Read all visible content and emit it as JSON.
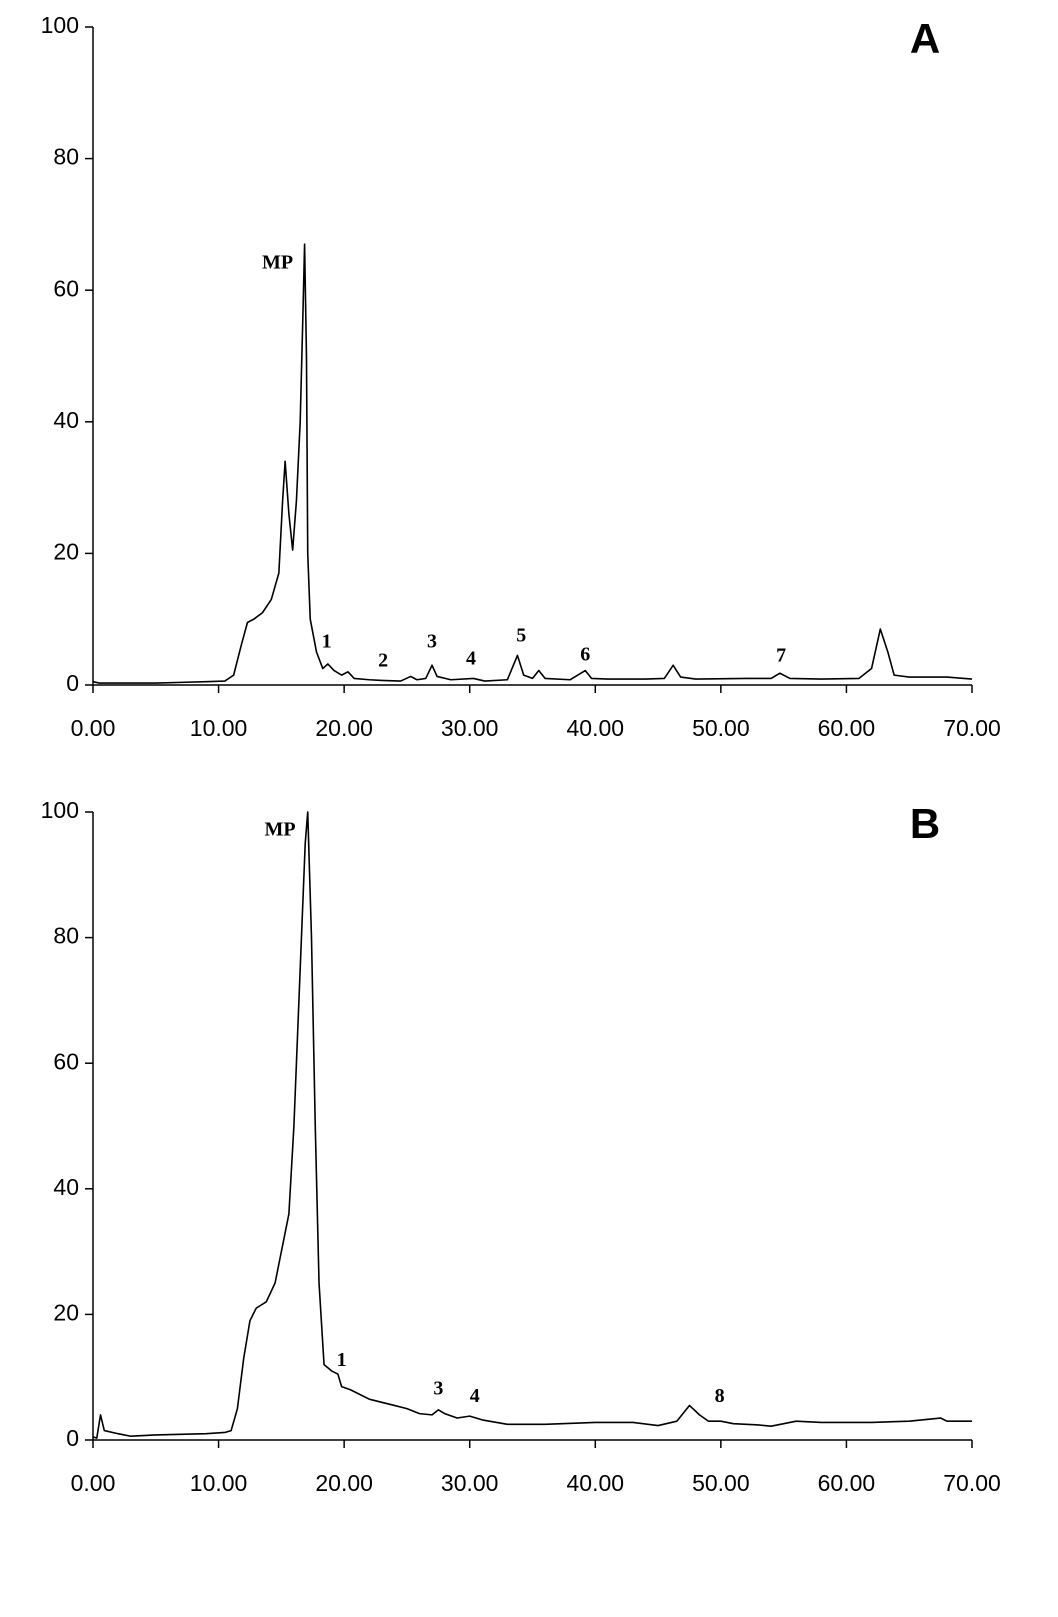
{
  "chart_data": [
    {
      "type": "line",
      "panel": "A",
      "color": "#000000",
      "x": [
        0,
        0.5,
        5,
        7,
        9,
        10.5,
        11.2,
        11.8,
        12.3,
        12.8,
        13.5,
        14.2,
        14.8,
        15.1,
        15.3,
        15.6,
        15.9,
        16.2,
        16.5,
        16.7,
        16.85,
        17.0,
        17.1,
        17.3,
        17.8,
        18.3,
        18.7,
        19.2,
        19.8,
        20.3,
        20.8,
        22,
        23,
        24.5,
        25.3,
        25.8,
        26.5,
        27,
        27.4,
        28.5,
        30.3,
        31.2,
        33,
        33.8,
        34.3,
        35,
        35.5,
        36,
        38,
        39.2,
        39.7,
        41,
        44,
        45.5,
        46.2,
        46.8,
        48,
        52,
        54,
        54.7,
        55.5,
        58,
        61,
        62,
        62.7,
        63.3,
        63.8,
        65,
        68,
        70
      ],
      "values": [
        0.5,
        0.3,
        0.3,
        0.4,
        0.5,
        0.6,
        1.5,
        6,
        9.5,
        10,
        11,
        13,
        17,
        28,
        34,
        26,
        20.5,
        28,
        40,
        55,
        67,
        50,
        20,
        10,
        5,
        2.5,
        3.2,
        2.2,
        1.5,
        2,
        1,
        0.8,
        0.7,
        0.6,
        1.3,
        0.8,
        1,
        3,
        1.3,
        0.8,
        1,
        0.6,
        0.8,
        4.5,
        1.5,
        1,
        2.2,
        1,
        0.8,
        2.2,
        1,
        0.9,
        0.9,
        1,
        3,
        1.2,
        0.9,
        1,
        1,
        1.8,
        1,
        0.9,
        1,
        2.5,
        8.5,
        5,
        1.5,
        1.2,
        1.2,
        0.9
      ],
      "annotations": [
        {
          "text": "MP",
          "x": 14.7,
          "y": 64
        },
        {
          "text": "1",
          "x": 18.6,
          "y": 6.4
        },
        {
          "text": "2",
          "x": 23.1,
          "y": 3.5
        },
        {
          "text": "3",
          "x": 27.0,
          "y": 6.4
        },
        {
          "text": "4",
          "x": 30.1,
          "y": 3.8
        },
        {
          "text": "5",
          "x": 34.1,
          "y": 7.3
        },
        {
          "text": "6",
          "x": 39.2,
          "y": 4.4
        },
        {
          "text": "7",
          "x": 54.8,
          "y": 4.3
        }
      ],
      "xlim": [
        0,
        70
      ],
      "ylim": [
        0,
        100
      ],
      "xticks": [
        {
          "value": 0,
          "label": "0.00"
        },
        {
          "value": 10,
          "label": "10.00"
        },
        {
          "value": 20,
          "label": "20.00"
        },
        {
          "value": 30,
          "label": "30.00"
        },
        {
          "value": 40,
          "label": "40.00"
        },
        {
          "value": 50,
          "label": "50.00"
        },
        {
          "value": 60,
          "label": "60.00"
        },
        {
          "value": 70,
          "label": "70.00"
        }
      ],
      "yticks": [
        0,
        20,
        40,
        60,
        80,
        100
      ]
    },
    {
      "type": "line",
      "panel": "B",
      "color": "#000000",
      "x": [
        0,
        0.3,
        0.6,
        0.9,
        2,
        3,
        5,
        7,
        9,
        10.5,
        11,
        11.5,
        12,
        12.5,
        13,
        13.8,
        14.5,
        15,
        15.6,
        16,
        16.5,
        16.9,
        17.1,
        17.4,
        17.7,
        18,
        18.4,
        19,
        19.5,
        19.8,
        20.5,
        22,
        24,
        25,
        26,
        27,
        27.5,
        28,
        29,
        30,
        31,
        33,
        36,
        40,
        43,
        45,
        46.5,
        47.5,
        48.3,
        49,
        50,
        51,
        53,
        54,
        56,
        58,
        62,
        65,
        67.5,
        68,
        70
      ],
      "values": [
        0.5,
        0.3,
        4,
        1.5,
        1,
        0.6,
        0.8,
        0.9,
        1,
        1.2,
        1.5,
        5,
        13,
        19,
        21,
        22,
        25,
        30,
        36,
        50,
        75,
        95,
        100,
        80,
        50,
        25,
        12,
        11,
        10.5,
        8.5,
        8,
        6.5,
        5.5,
        5,
        4.2,
        4,
        4.8,
        4.2,
        3.5,
        3.8,
        3.2,
        2.5,
        2.5,
        2.8,
        2.8,
        2.3,
        3,
        5.5,
        4,
        3,
        3,
        2.6,
        2.4,
        2.2,
        3,
        2.8,
        2.8,
        3,
        3.5,
        3,
        3
      ],
      "annotations": [
        {
          "text": "MP",
          "x": 14.9,
          "y": 97
        },
        {
          "text": "1",
          "x": 19.8,
          "y": 12.5
        },
        {
          "text": "3",
          "x": 27.5,
          "y": 8
        },
        {
          "text": "4",
          "x": 30.4,
          "y": 6.8
        },
        {
          "text": "8",
          "x": 49.9,
          "y": 6.8
        }
      ],
      "xlim": [
        0,
        70
      ],
      "ylim": [
        0,
        100
      ],
      "xticks": [
        {
          "value": 0,
          "label": "0.00"
        },
        {
          "value": 10,
          "label": "10.00"
        },
        {
          "value": 20,
          "label": "20.00"
        },
        {
          "value": 30,
          "label": "30.00"
        },
        {
          "value": 40,
          "label": "40.00"
        },
        {
          "value": 50,
          "label": "50.00"
        },
        {
          "value": 60,
          "label": "60.00"
        },
        {
          "value": 70,
          "label": "70.00"
        }
      ],
      "yticks": [
        0,
        20,
        40,
        60,
        80,
        100
      ]
    }
  ]
}
